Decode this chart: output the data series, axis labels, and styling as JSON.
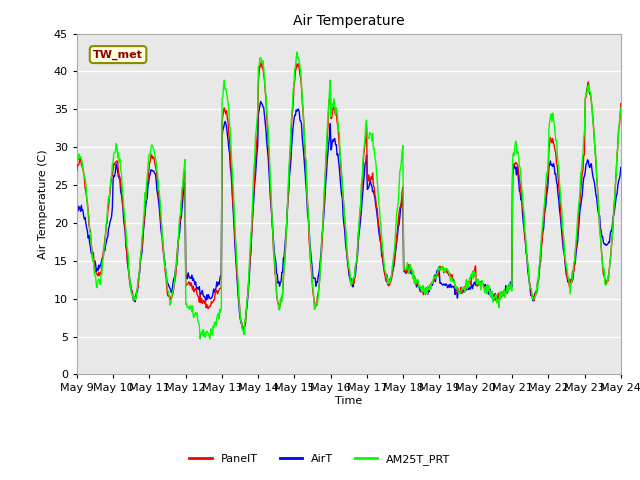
{
  "title": "Air Temperature",
  "ylabel": "Air Temperature (C)",
  "xlabel": "Time",
  "ylim": [
    0,
    45
  ],
  "yticks": [
    0,
    5,
    10,
    15,
    20,
    25,
    30,
    35,
    40,
    45
  ],
  "annotation_text": "TW_met",
  "legend_labels": [
    "PanelT",
    "AirT",
    "AM25T_PRT"
  ],
  "line_colors": [
    "red",
    "blue",
    "lime"
  ],
  "n_days": 15,
  "start_day": 9,
  "daily_peaks_panel": [
    28,
    28,
    29,
    12,
    35,
    41,
    41,
    35,
    26,
    14,
    14,
    12,
    28,
    31,
    38
  ],
  "daily_lows_panel": [
    13,
    10,
    10,
    9,
    6,
    9,
    9,
    12,
    12,
    11,
    11,
    10,
    10,
    12,
    12
  ],
  "daily_peaks_air": [
    22,
    27,
    27,
    13,
    33,
    36,
    35,
    31,
    25,
    14,
    12,
    12,
    27,
    28,
    28
  ],
  "daily_lows_air": [
    14,
    10,
    11,
    10,
    6,
    12,
    12,
    12,
    12,
    11,
    11,
    10,
    10,
    12,
    17
  ],
  "daily_peaks_am25t": [
    29,
    30,
    30,
    9,
    38,
    42,
    42,
    36,
    32,
    14,
    14,
    12,
    30,
    34,
    38
  ],
  "daily_lows_am25t": [
    12,
    10,
    10,
    5,
    6,
    9,
    9,
    12,
    12,
    11,
    11,
    10,
    10,
    12,
    12
  ],
  "fig_width": 6.4,
  "fig_height": 4.8,
  "dpi": 100
}
